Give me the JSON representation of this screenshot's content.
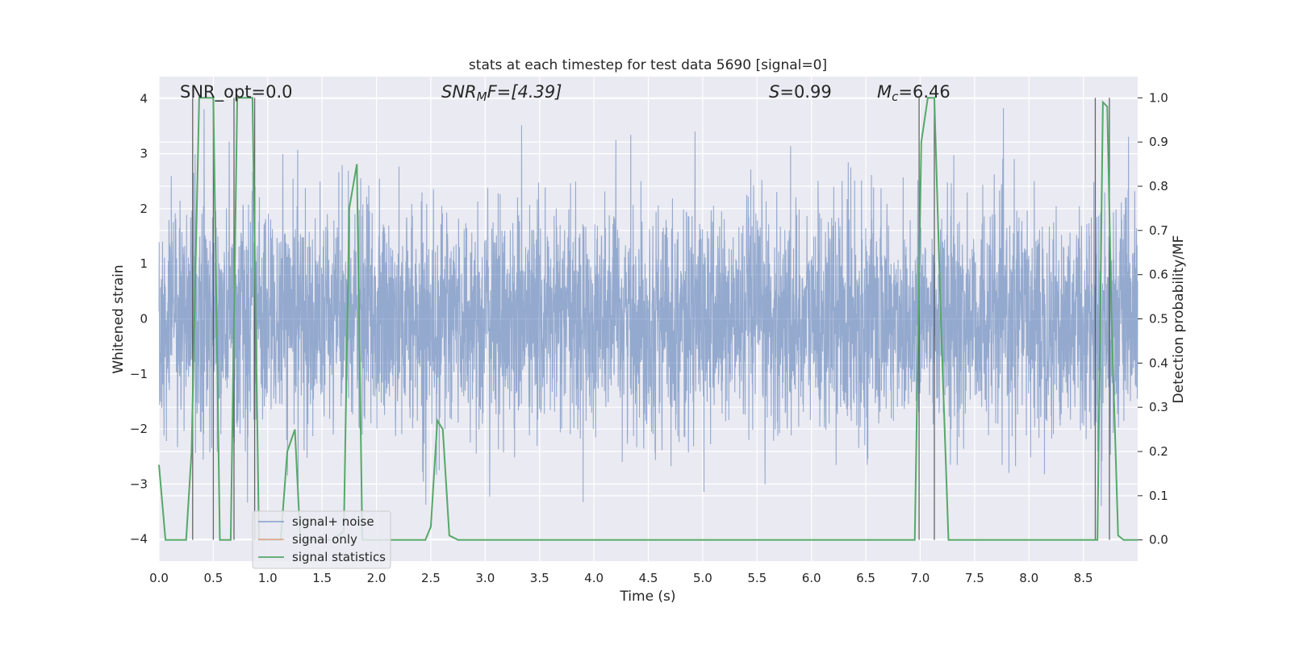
{
  "chart_data": {
    "type": "line",
    "title": "stats at each timestep for test data 5690 [signal=0]",
    "xlabel": "Time (s)",
    "ylabel_left": "Whitened strain",
    "ylabel_right": "Detection probability/MF",
    "xlim": [
      0,
      9
    ],
    "ylim_left": [
      -4.4,
      4.4
    ],
    "ylim_right": [
      -0.048,
      1.048
    ],
    "x_ticks": [
      "0.0",
      "0.5",
      "1.0",
      "1.5",
      "2.0",
      "2.5",
      "3.0",
      "3.5",
      "4.0",
      "4.5",
      "5.0",
      "5.5",
      "6.0",
      "6.5",
      "7.0",
      "7.5",
      "8.0",
      "8.5"
    ],
    "y_ticks_left": [
      "−4",
      "−3",
      "−2",
      "−1",
      "0",
      "1",
      "2",
      "3",
      "4"
    ],
    "y_ticks_right": [
      "0.0",
      "0.1",
      "0.2",
      "0.3",
      "0.4",
      "0.5",
      "0.6",
      "0.7",
      "0.8",
      "0.9",
      "1.0"
    ],
    "grid": true,
    "legend_position": "lower-left",
    "annotations": {
      "snr_opt": "SNR_opt=0.0",
      "snr_mf_sym": "SNR",
      "snr_mf_sub": "M",
      "snr_mf_rest": "F=[4.39]",
      "s_sym": "S",
      "s_rest": "=0.99",
      "mc_sym": "M",
      "mc_sub": "c",
      "mc_rest": "=6.46"
    },
    "series": [
      {
        "name": "signal+ noise",
        "color": "#4c72b0",
        "axis": "left",
        "description_values": "whitened noise, approx gaussian, amplitude ~ ±2.5 with spikes to ±4"
      },
      {
        "name": "signal only",
        "color": "#dd8452",
        "axis": "left",
        "values": []
      },
      {
        "name": "signal statistics",
        "color": "#55a868",
        "axis": "right",
        "x": [
          0.0,
          0.06,
          0.12,
          0.25,
          0.3,
          0.37,
          0.42,
          0.5,
          0.56,
          0.66,
          0.72,
          0.78,
          0.86,
          0.92,
          1.0,
          1.06,
          1.12,
          1.18,
          1.25,
          1.3,
          1.36,
          1.6,
          1.7,
          1.75,
          1.82,
          1.87,
          1.91,
          1.97,
          2.05,
          2.15,
          2.3,
          2.45,
          2.5,
          2.56,
          2.61,
          2.67,
          2.75,
          2.85,
          3.0,
          4.0,
          5.0,
          6.0,
          6.5,
          6.95,
          7.01,
          7.07,
          7.13,
          7.19,
          7.26,
          7.35,
          8.0,
          8.55,
          8.63,
          8.68,
          8.72,
          8.76,
          8.82,
          8.87,
          8.93,
          9.0
        ],
        "values": [
          0.17,
          0.0,
          0.0,
          0.0,
          0.2,
          1.0,
          1.0,
          1.0,
          0.0,
          0.0,
          1.0,
          1.0,
          1.0,
          0.0,
          0.0,
          0.0,
          0.0,
          0.2,
          0.25,
          0.0,
          0.0,
          0.0,
          0.02,
          0.75,
          0.85,
          0.0,
          0.0,
          0.0,
          0.0,
          0.0,
          0.0,
          0.0,
          0.03,
          0.27,
          0.25,
          0.01,
          0.0,
          0.0,
          0.0,
          0.0,
          0.0,
          0.0,
          0.0,
          0.0,
          0.9,
          1.0,
          1.0,
          0.5,
          0.0,
          0.0,
          0.0,
          0.0,
          0.0,
          0.99,
          0.98,
          0.5,
          0.01,
          0.0,
          0.0,
          0.0
        ]
      }
    ],
    "vertical_markers_x": [
      0.31,
      0.5,
      0.69,
      0.88,
      6.99,
      7.13,
      8.61,
      8.74
    ]
  }
}
